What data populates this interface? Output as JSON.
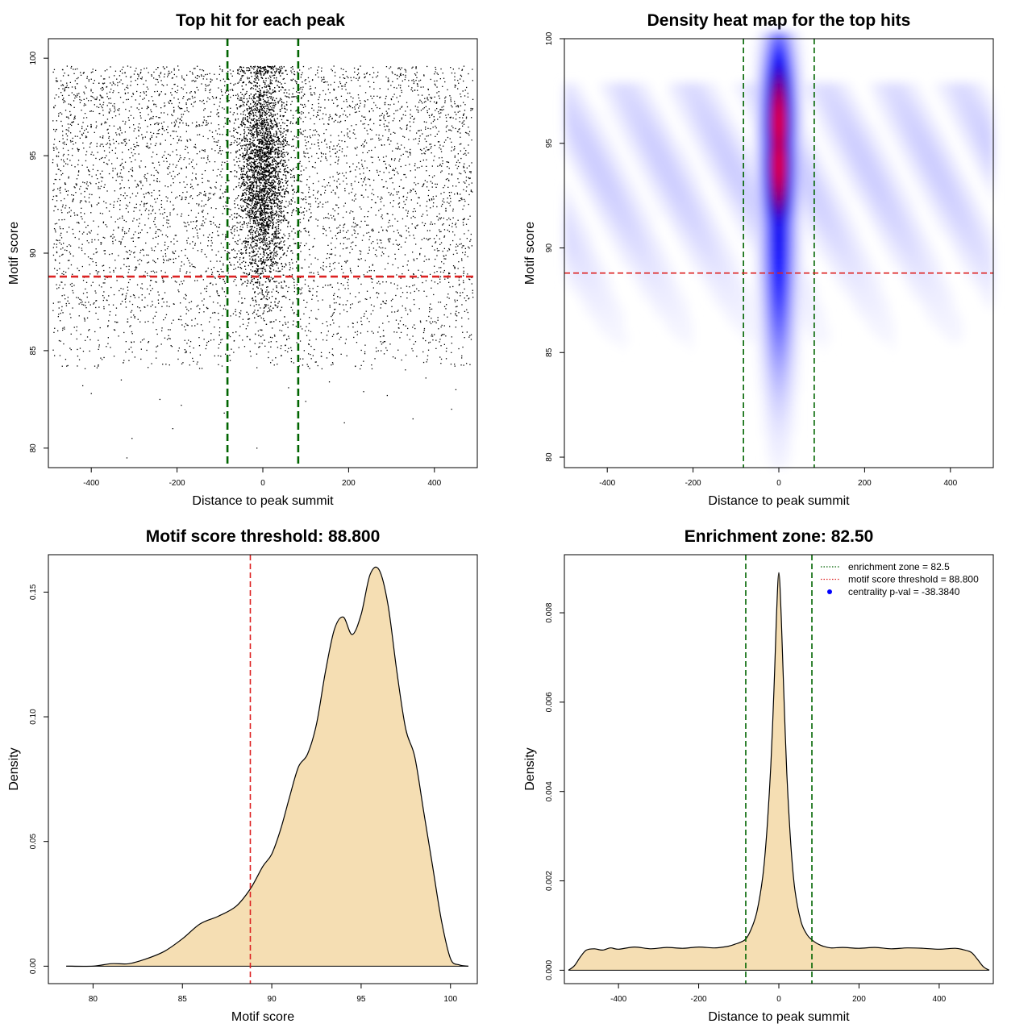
{
  "chart_data": [
    {
      "type": "scatter",
      "title": "Top hit for each peak",
      "xlabel": "Distance to peak summit",
      "ylabel": "Motif score",
      "xlim": [
        -500,
        500
      ],
      "ylim": [
        79,
        101
      ],
      "xticks": [
        -400,
        -200,
        0,
        200,
        400
      ],
      "yticks": [
        80,
        85,
        90,
        95,
        100
      ],
      "background_uniform": {
        "x_range": [
          -490,
          490
        ],
        "y_range": [
          84,
          99.6
        ],
        "count": 5200
      },
      "central_cluster": {
        "x_center": 0,
        "x_sd": 28,
        "y_center": 94,
        "y_sd": 3.0,
        "count": 5500
      },
      "sparse_low_points": [
        {
          "x": -317,
          "y": 79.5
        },
        {
          "x": -240,
          "y": 82.5
        },
        {
          "x": -210,
          "y": 81
        },
        {
          "x": -305,
          "y": 80.5
        },
        {
          "x": -14,
          "y": 80
        },
        {
          "x": 190,
          "y": 81.3
        },
        {
          "x": 290,
          "y": 82.7
        },
        {
          "x": 350,
          "y": 81.5
        },
        {
          "x": 440,
          "y": 82
        },
        {
          "x": 450,
          "y": 83
        },
        {
          "x": -420,
          "y": 83.2
        },
        {
          "x": -400,
          "y": 82.8
        },
        {
          "x": -330,
          "y": 83.5
        },
        {
          "x": -190,
          "y": 82.2
        },
        {
          "x": 100,
          "y": 82.4
        },
        {
          "x": 155,
          "y": 83.4
        },
        {
          "x": 235,
          "y": 82.9
        },
        {
          "x": 380,
          "y": 83.6
        },
        {
          "x": -90,
          "y": 81.8
        },
        {
          "x": 60,
          "y": 83.1
        }
      ],
      "vlines": [
        -82.5,
        82.5
      ],
      "hlines": [
        88.8
      ],
      "colors": {
        "points": "#000000",
        "vline": "#006400",
        "hline": "#dd2222"
      }
    },
    {
      "type": "heatmap",
      "title": "Density heat map for the top hits",
      "xlabel": "Distance to peak summit",
      "ylabel": "Motif score",
      "xlim": [
        -500,
        500
      ],
      "ylim": [
        79.5,
        100
      ],
      "xticks": [
        -400,
        -200,
        0,
        200,
        400
      ],
      "yticks": [
        80,
        85,
        90,
        95,
        100
      ],
      "hot_spot": {
        "x_center": 0,
        "x_sd": 22,
        "y_peaks": [
          96,
          94
        ],
        "y_sd": 2.6
      },
      "background_band": {
        "y_range": [
          85,
          98
        ],
        "intensity": 0.1
      },
      "vlines": [
        -82.5,
        82.5
      ],
      "hlines": [
        88.8
      ],
      "colors": {
        "low": "#ffffff",
        "mid": "#0000ff",
        "high": "#ff0000",
        "vline": "#006400",
        "hline": "#dd2222"
      }
    },
    {
      "type": "area",
      "title": "Motif score threshold: 88.800",
      "xlabel": "Motif score",
      "ylabel": "Density",
      "xlim": [
        77.5,
        101.5
      ],
      "ylim": [
        -0.007,
        0.165
      ],
      "xticks": [
        80,
        85,
        90,
        95,
        100
      ],
      "yticks": [
        0.0,
        0.05,
        0.1,
        0.15
      ],
      "ytick_labels": [
        "0.00",
        "0.05",
        "0.10",
        "0.15"
      ],
      "x": [
        78.5,
        80,
        81,
        82,
        83,
        84,
        85,
        86,
        87,
        88,
        88.8,
        89.5,
        90,
        90.5,
        91,
        91.5,
        92,
        92.5,
        93,
        93.5,
        94,
        94.5,
        95,
        95.5,
        96,
        96.5,
        97,
        97.5,
        98,
        98.5,
        99,
        99.5,
        100,
        100.5,
        101
      ],
      "y": [
        0,
        0,
        0.001,
        0.001,
        0.003,
        0.006,
        0.011,
        0.017,
        0.02,
        0.024,
        0.031,
        0.04,
        0.045,
        0.055,
        0.068,
        0.08,
        0.085,
        0.097,
        0.118,
        0.135,
        0.14,
        0.133,
        0.141,
        0.157,
        0.159,
        0.145,
        0.118,
        0.095,
        0.084,
        0.062,
        0.04,
        0.018,
        0.003,
        0.0005,
        0
      ],
      "vlines": [
        88.8
      ],
      "colors": {
        "fill": "#f5deb3",
        "line": "#000000",
        "vline": "#dd2222"
      }
    },
    {
      "type": "area",
      "title": "Enrichment zone: 82.50",
      "xlabel": "Distance to peak summit",
      "ylabel": "Density",
      "xlim": [
        -535,
        535
      ],
      "ylim": [
        -0.0003,
        0.0093
      ],
      "xticks": [
        -400,
        -200,
        0,
        200,
        400
      ],
      "yticks": [
        0.0,
        0.002,
        0.004,
        0.006,
        0.008
      ],
      "ytick_labels": [
        "0.000",
        "0.002",
        "0.004",
        "0.006",
        "0.008"
      ],
      "x": [
        -525,
        -510,
        -495,
        -480,
        -460,
        -440,
        -420,
        -400,
        -360,
        -320,
        -280,
        -240,
        -200,
        -160,
        -130,
        -110,
        -95,
        -82.5,
        -70,
        -55,
        -40,
        -30,
        -20,
        -12,
        -6,
        0,
        6,
        12,
        20,
        30,
        40,
        55,
        70,
        82.5,
        95,
        110,
        130,
        160,
        200,
        240,
        280,
        320,
        360,
        400,
        440,
        460,
        480,
        495,
        510,
        525
      ],
      "y": [
        0,
        0.0001,
        0.0003,
        0.00045,
        0.00048,
        0.00045,
        0.0005,
        0.00047,
        0.00052,
        0.00048,
        0.00051,
        0.00049,
        0.00052,
        0.0005,
        0.00053,
        0.00058,
        0.00063,
        0.0007,
        0.0009,
        0.0013,
        0.0021,
        0.0031,
        0.0046,
        0.0063,
        0.0079,
        0.0089,
        0.0079,
        0.0063,
        0.0044,
        0.0028,
        0.0018,
        0.0011,
        0.0008,
        0.00068,
        0.0006,
        0.00054,
        0.0005,
        0.00051,
        0.00049,
        0.00051,
        0.00048,
        0.0005,
        0.00049,
        0.00047,
        0.00049,
        0.00046,
        0.0004,
        0.00025,
        8e-05,
        0
      ],
      "vlines": [
        -82.5,
        82.5
      ],
      "legend": {
        "position": "top-right",
        "entries": [
          {
            "label": "enrichment zone = 82.5",
            "style": "dotted",
            "color": "#006400"
          },
          {
            "label": "motif score threshold = 88.800",
            "style": "dotted",
            "color": "#dd2222"
          },
          {
            "label": "centrality p-val = -38.3840",
            "style": "point",
            "color": "#0000ff"
          }
        ]
      },
      "colors": {
        "fill": "#f5deb3",
        "line": "#000000",
        "vline": "#006400"
      }
    }
  ]
}
